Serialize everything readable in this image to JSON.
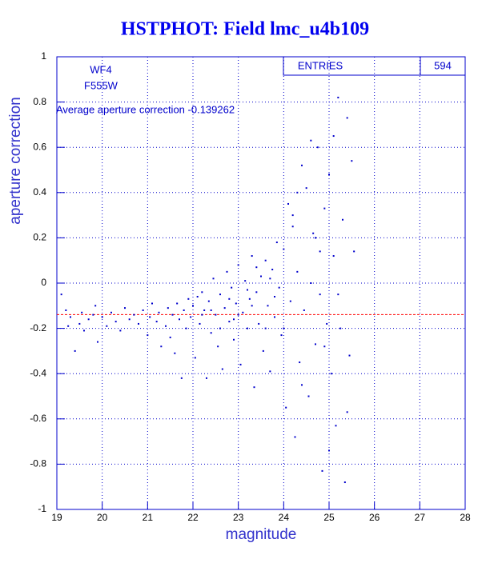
{
  "chart_data": {
    "type": "scatter",
    "title": "HSTPHOT: Field lmc_u4b109",
    "x_label": "magnitude",
    "y_label": "aperture correction",
    "annotations": [
      "WF4",
      "F555W"
    ],
    "stats_box": {
      "label": "ENTRIES",
      "value": 594
    },
    "reference_line": {
      "value": -0.139262,
      "label": "Average aperture correction -0.139262",
      "color": "#ff0000"
    },
    "xlim": [
      19,
      28
    ],
    "xticks": [
      19,
      20,
      21,
      22,
      23,
      24,
      25,
      26,
      27,
      28
    ],
    "ylim": [
      -1,
      1
    ],
    "yticks": [
      -1,
      -0.8,
      -0.6,
      -0.4,
      -0.2,
      0,
      0.2,
      0.4,
      0.6,
      0.8,
      1
    ],
    "grid": true,
    "series": [
      {
        "color": "#0000cc",
        "x": [
          19.1,
          19.2,
          19.25,
          19.3,
          19.4,
          19.5,
          19.55,
          19.6,
          19.7,
          19.8,
          19.85,
          19.9,
          20.0,
          20.1,
          20.2,
          20.3,
          20.4,
          20.5,
          20.6,
          20.7,
          20.8,
          20.9,
          21.0,
          21.05,
          21.1,
          21.2,
          21.25,
          21.3,
          21.4,
          21.45,
          21.5,
          21.55,
          21.6,
          21.65,
          21.7,
          21.75,
          21.8,
          21.85,
          21.9,
          21.95,
          22.0,
          22.05,
          22.1,
          22.15,
          22.2,
          22.25,
          22.3,
          22.35,
          22.4,
          22.45,
          22.5,
          22.55,
          22.6,
          22.65,
          22.7,
          22.75,
          22.8,
          22.85,
          22.9,
          22.95,
          23.0,
          23.05,
          23.1,
          23.15,
          23.2,
          23.25,
          23.3,
          23.35,
          23.4,
          23.45,
          23.5,
          23.55,
          23.6,
          23.65,
          23.7,
          23.75,
          23.8,
          23.85,
          23.9,
          23.95,
          24.0,
          24.05,
          24.1,
          24.15,
          24.2,
          24.25,
          24.3,
          24.35,
          24.4,
          24.45,
          24.5,
          24.55,
          24.6,
          24.65,
          24.7,
          24.75,
          24.8,
          24.85,
          24.9,
          24.95,
          25.0,
          25.05,
          25.1,
          25.15,
          25.2,
          25.25,
          25.3,
          25.35,
          25.4,
          25.45,
          25.5,
          25.55,
          24.0,
          24.2,
          24.4,
          24.6,
          24.8,
          25.0,
          25.2,
          25.4,
          24.3,
          24.7,
          24.9,
          25.1,
          22.4,
          22.6,
          22.8,
          23.0,
          23.2,
          23.4,
          23.6,
          23.8,
          22.2,
          22.9,
          23.3,
          23.7
        ],
        "values": [
          -0.05,
          -0.12,
          -0.19,
          -0.15,
          -0.3,
          -0.18,
          -0.13,
          -0.21,
          -0.16,
          -0.14,
          -0.1,
          -0.26,
          -0.15,
          -0.19,
          -0.13,
          -0.17,
          -0.21,
          -0.11,
          -0.16,
          -0.14,
          -0.18,
          -0.12,
          -0.23,
          -0.15,
          -0.09,
          -0.17,
          -0.13,
          -0.28,
          -0.19,
          -0.11,
          -0.24,
          -0.14,
          -0.31,
          -0.09,
          -0.16,
          -0.42,
          -0.12,
          -0.2,
          -0.07,
          -0.15,
          -0.1,
          -0.33,
          -0.06,
          -0.18,
          -0.04,
          -0.12,
          -0.42,
          -0.08,
          -0.22,
          0.02,
          -0.14,
          -0.28,
          -0.05,
          -0.38,
          -0.11,
          0.05,
          -0.17,
          -0.02,
          -0.25,
          -0.09,
          0.08,
          -0.36,
          -0.13,
          0.01,
          -0.2,
          -0.07,
          0.12,
          -0.46,
          -0.04,
          -0.18,
          0.03,
          -0.3,
          0.1,
          -0.1,
          -0.39,
          0.06,
          -0.15,
          0.18,
          -0.02,
          -0.23,
          0.15,
          -0.55,
          0.35,
          -0.08,
          0.25,
          -0.68,
          0.05,
          -0.35,
          0.52,
          -0.12,
          0.42,
          -0.5,
          0.0,
          0.22,
          -0.27,
          0.6,
          -0.05,
          -0.83,
          0.33,
          -0.18,
          0.48,
          -0.4,
          0.12,
          -0.63,
          0.82,
          -0.2,
          0.28,
          -0.88,
          0.73,
          -0.32,
          0.54,
          0.14,
          -0.2,
          0.3,
          -0.45,
          0.63,
          0.14,
          -0.74,
          -0.05,
          -0.57,
          0.4,
          0.2,
          -0.28,
          0.65,
          -0.12,
          -0.2,
          -0.07,
          -0.14,
          -0.03,
          0.07,
          -0.2,
          -0.06,
          -0.14,
          -0.16,
          -0.1,
          0.02
        ]
      }
    ]
  }
}
